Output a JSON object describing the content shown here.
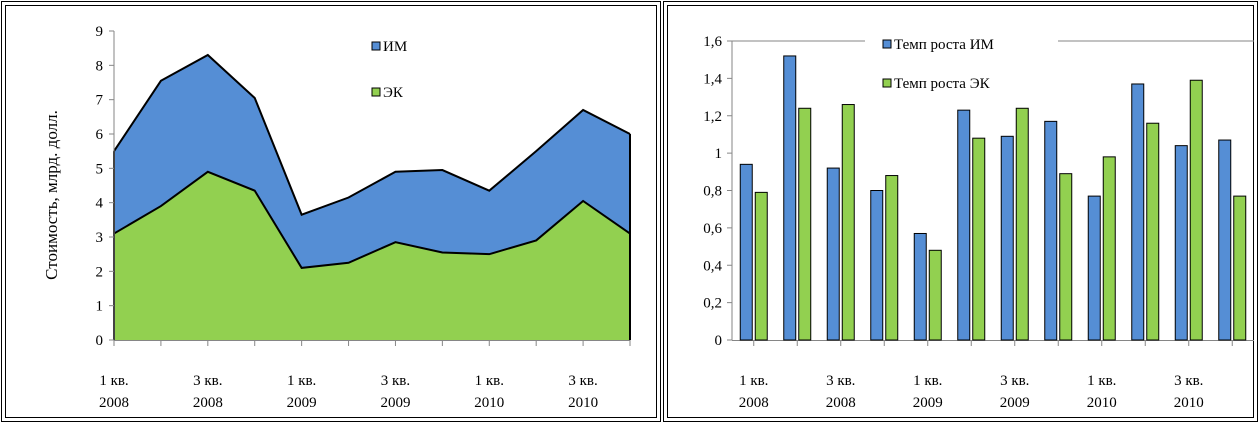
{
  "chart_data": [
    {
      "type": "area",
      "stacked": true,
      "ylabel": "Стоимость, млрд. долл.",
      "ylim": [
        0,
        9
      ],
      "yticks": [
        "0",
        "1",
        "2",
        "3",
        "4",
        "5",
        "6",
        "7",
        "8",
        "9"
      ],
      "x_labels": [
        {
          "index": 0,
          "line1": "1 кв.",
          "line2": "2008"
        },
        {
          "index": 2,
          "line1": "3 кв.",
          "line2": "2008"
        },
        {
          "index": 4,
          "line1": "1 кв.",
          "line2": "2009"
        },
        {
          "index": 6,
          "line1": "3 кв.",
          "line2": "2009"
        },
        {
          "index": 8,
          "line1": "1 кв.",
          "line2": "2010"
        },
        {
          "index": 10,
          "line1": "3 кв.",
          "line2": "2010"
        }
      ],
      "series": [
        {
          "name": "ЭК",
          "color": "#92d050",
          "values": [
            3.1,
            3.9,
            4.9,
            4.35,
            2.1,
            2.25,
            2.85,
            2.55,
            2.5,
            2.9,
            4.05,
            3.1
          ]
        },
        {
          "name": "ИМ",
          "color": "#558ed5",
          "values": [
            2.4,
            3.65,
            3.4,
            2.7,
            1.55,
            1.9,
            2.05,
            2.4,
            1.85,
            2.6,
            2.65,
            2.9
          ]
        }
      ],
      "legend_order": [
        "ИМ",
        "ЭК"
      ],
      "legend": "top-right"
    },
    {
      "type": "bar",
      "ylim": [
        0,
        1.6
      ],
      "yticks": [
        "0",
        "0,2",
        "0,4",
        "0,6",
        "0,8",
        "1",
        "1,2",
        "1,4",
        "1,6"
      ],
      "x_labels": [
        {
          "index": 0,
          "line1": "1 кв.",
          "line2": "2008"
        },
        {
          "index": 2,
          "line1": "3 кв.",
          "line2": "2008"
        },
        {
          "index": 4,
          "line1": "1 кв.",
          "line2": "2009"
        },
        {
          "index": 6,
          "line1": "3 кв.",
          "line2": "2009"
        },
        {
          "index": 8,
          "line1": "1 кв.",
          "line2": "2010"
        },
        {
          "index": 10,
          "line1": "3 кв.",
          "line2": "2010"
        }
      ],
      "series": [
        {
          "name": "Темп роста ИМ",
          "color": "#558ed5",
          "values": [
            0.94,
            1.52,
            0.92,
            0.8,
            0.57,
            1.23,
            1.09,
            1.17,
            0.77,
            1.37,
            1.04,
            1.07
          ]
        },
        {
          "name": "Темп роста ЭК",
          "color": "#92d050",
          "values": [
            0.79,
            1.24,
            1.26,
            0.88,
            0.48,
            1.08,
            1.24,
            0.89,
            0.98,
            1.16,
            1.39,
            0.77
          ]
        }
      ],
      "legend": "top"
    }
  ]
}
